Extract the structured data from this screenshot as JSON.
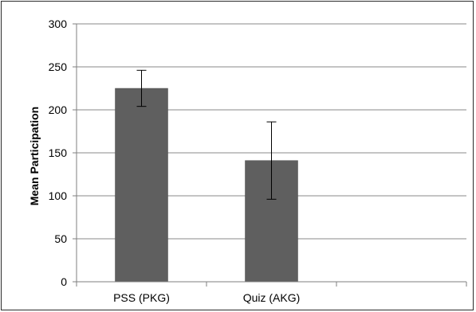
{
  "chart_data": {
    "type": "bar",
    "title": "",
    "xlabel": "",
    "ylabel": "Mean Participation",
    "categories": [
      "PSS (PKG)",
      "Quiz (AKG)",
      ""
    ],
    "values": [
      225,
      141,
      null
    ],
    "error_low": [
      204,
      96,
      null
    ],
    "error_high": [
      246,
      186,
      null
    ],
    "ylim": [
      0,
      300
    ],
    "yticks": [
      0,
      50,
      100,
      150,
      200,
      250,
      300
    ],
    "grid": true,
    "legend": "none",
    "colors": {
      "bar": "#5f5f5f",
      "bar_edge": "#4a4a4a",
      "grid": "#8a8a8a",
      "axis": "#7f7f7f",
      "error": "#000000"
    }
  }
}
